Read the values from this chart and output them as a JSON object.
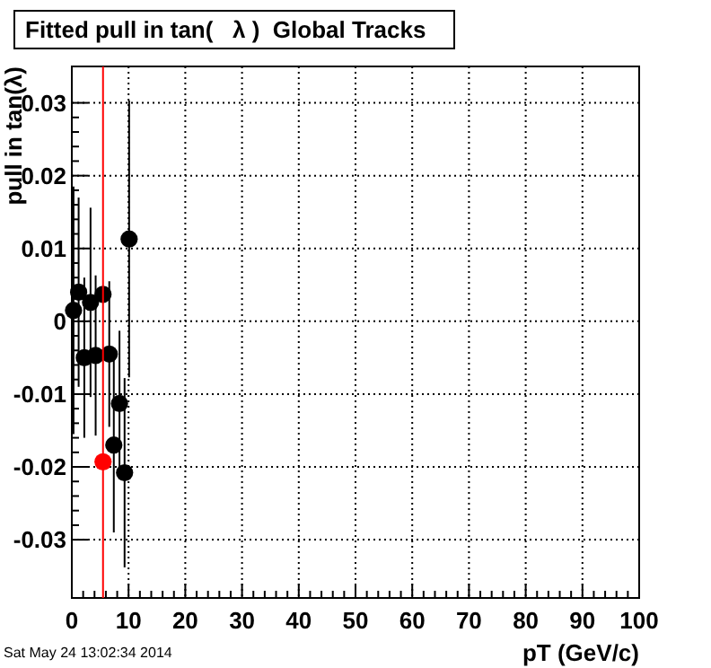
{
  "chart_data": {
    "type": "scatter",
    "title": "Fitted pull in tan(   λ )  Global Tracks",
    "xlabel": "pT (GeV/c)",
    "ylabel": "pull in tan(λ)",
    "annotations": [
      "Sat May 24 13:02:34 2014"
    ],
    "xlim": [
      0,
      100
    ],
    "xticks": [
      0,
      10,
      20,
      30,
      40,
      50,
      60,
      70,
      80,
      90,
      100
    ],
    "ylim": [
      -0.038,
      0.035
    ],
    "yticks": [
      -0.03,
      -0.02,
      -0.01,
      0,
      0.01,
      0.02,
      0.03
    ],
    "grid": true,
    "marker": "circle",
    "series": [
      {
        "color": "#000000",
        "x": [
          0.3,
          1.2,
          2.2,
          3.3,
          4.2,
          5.5,
          6.6,
          7.4,
          8.4,
          9.3,
          10.1
        ],
        "values": [
          0.0015,
          0.004,
          -0.005,
          0.0026,
          -0.0047,
          0.0037,
          -0.0045,
          -0.017,
          -0.0113,
          -0.0208,
          0.0113
        ],
        "errors": [
          0.017,
          0.013,
          0.011,
          0.013,
          0.011,
          null,
          0.01,
          0.012,
          0.01,
          0.013,
          0.019
        ]
      },
      {
        "color": "#ff0000",
        "x": [
          5.5
        ],
        "values": [
          -0.0193
        ],
        "errors": [
          [
            -0.038,
            0.035
          ]
        ]
      }
    ]
  }
}
